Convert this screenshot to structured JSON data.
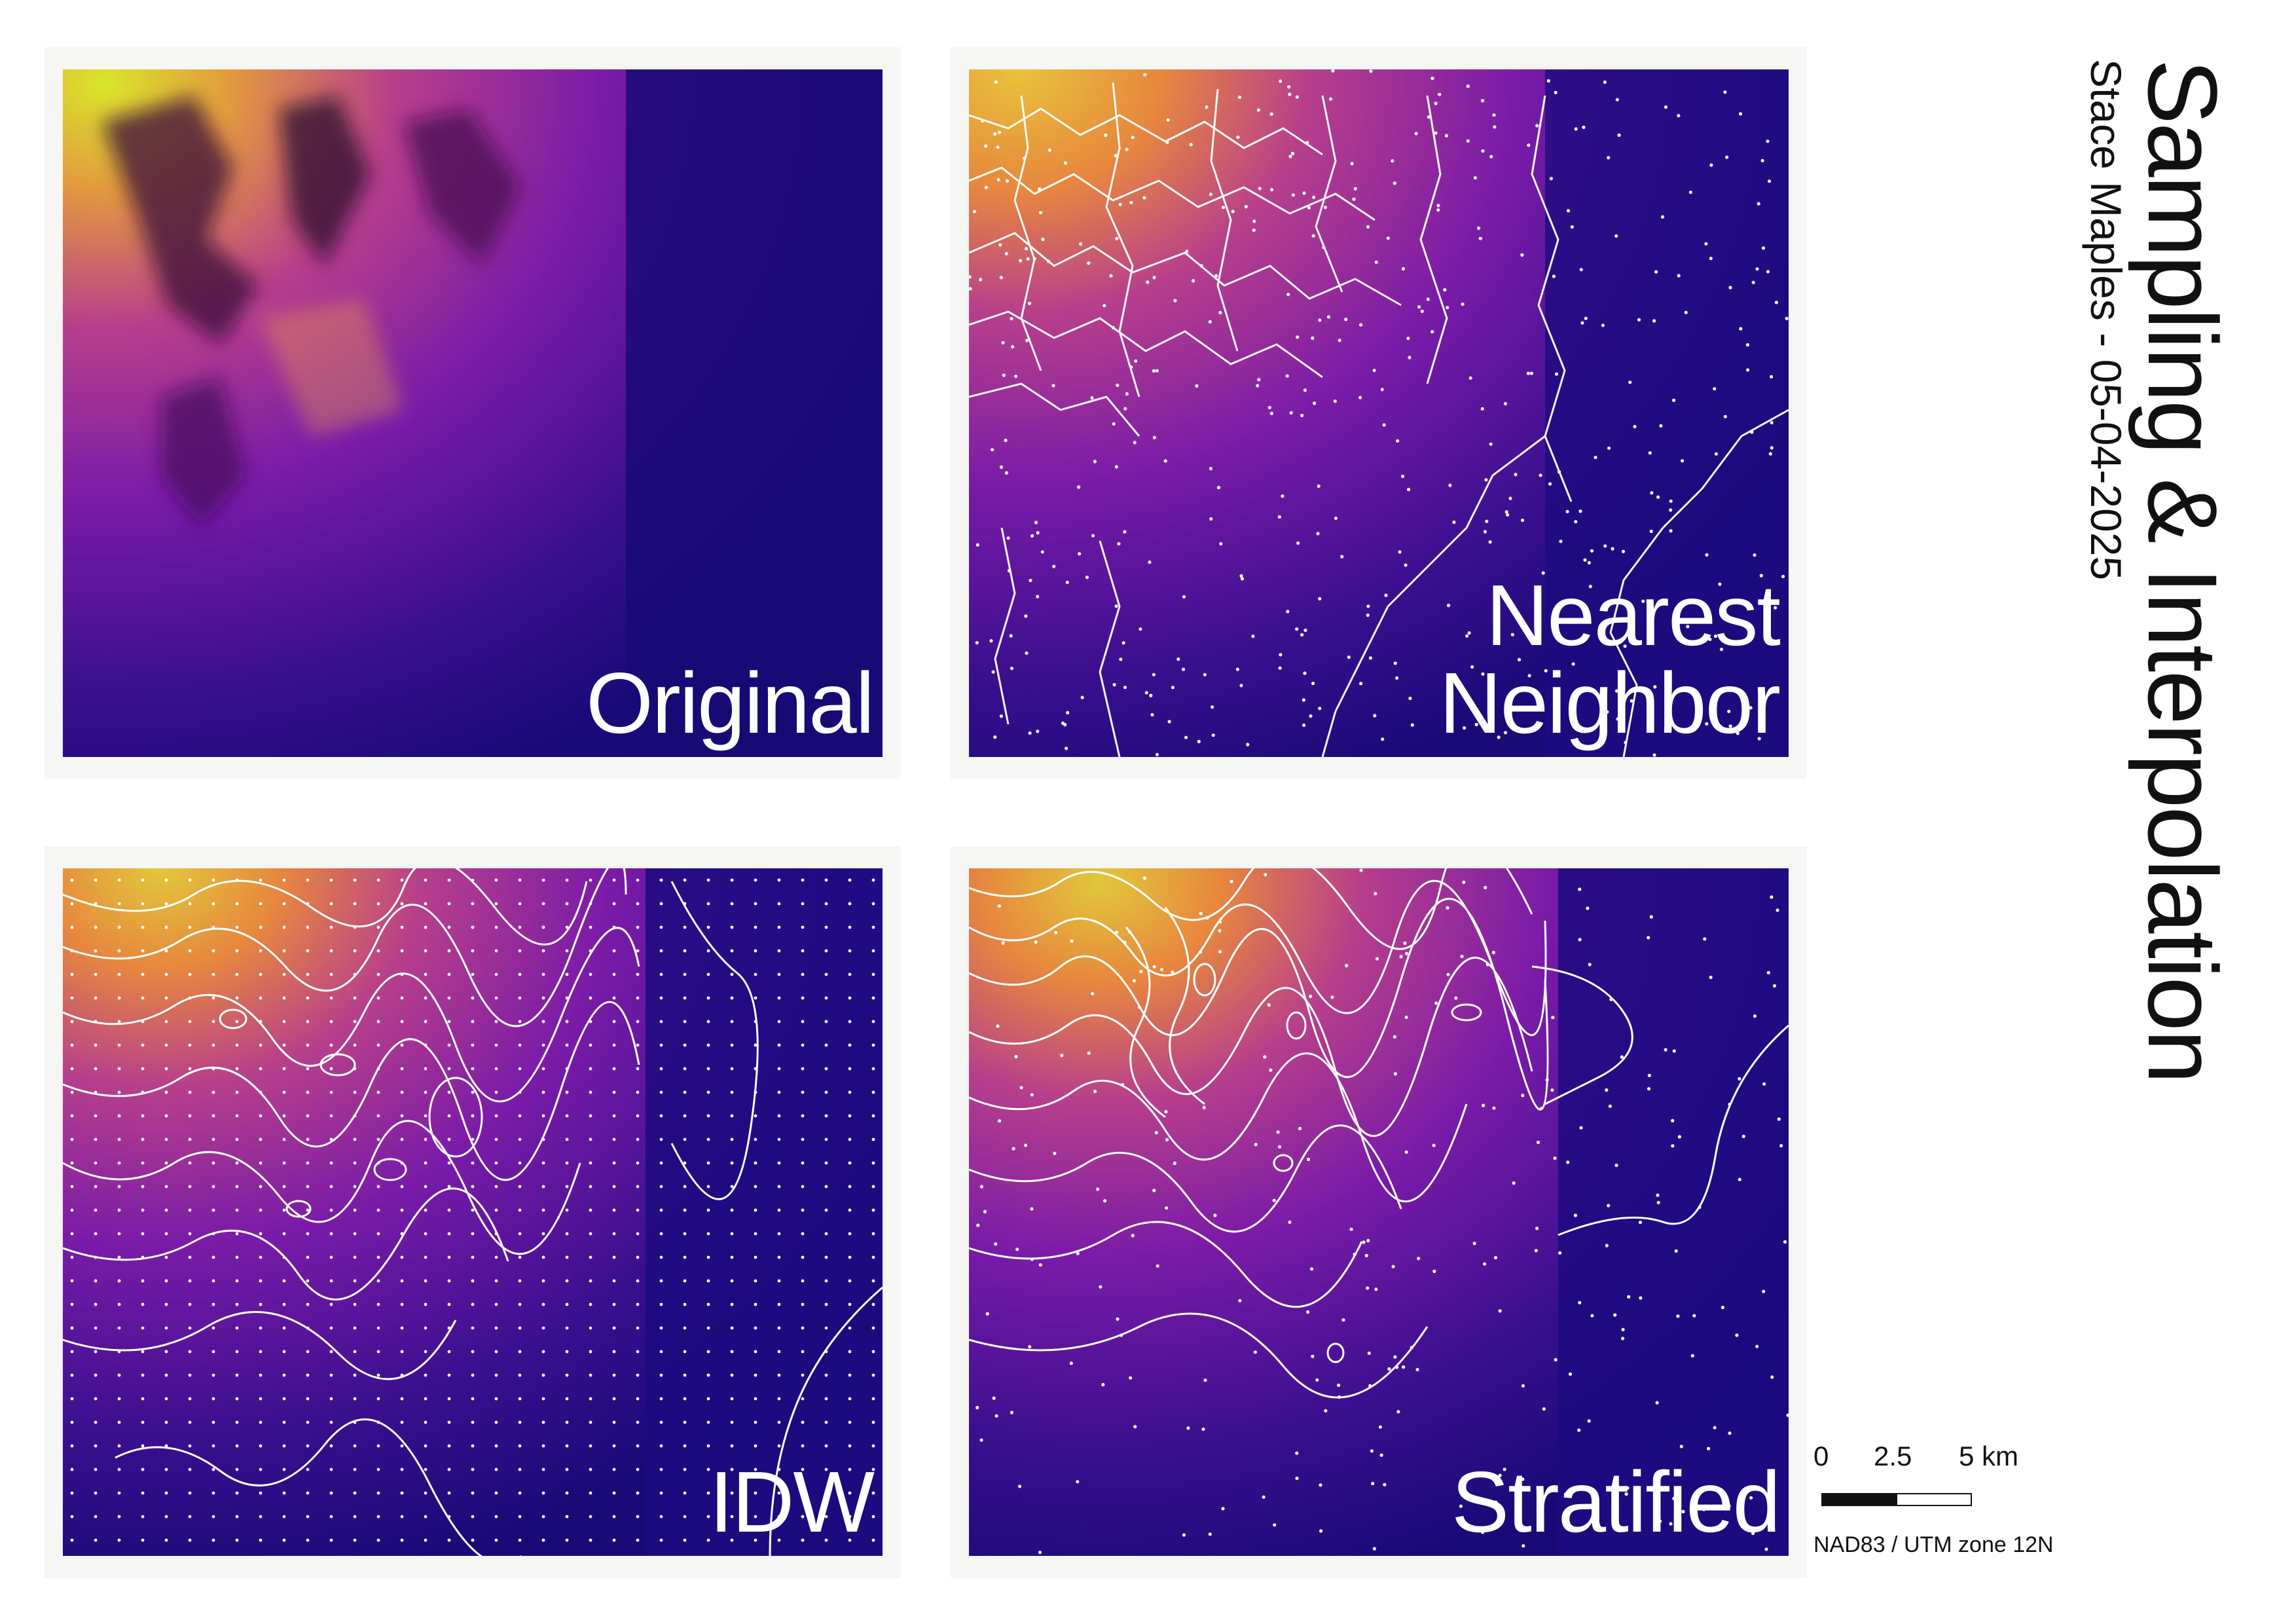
{
  "title": "Sampling & Interpolation",
  "author_date": "Stace Maples - 05-04-2025",
  "panels": [
    {
      "id": "original",
      "label": "Original"
    },
    {
      "id": "nearest",
      "label": "Nearest\nNeighbor"
    },
    {
      "id": "idw",
      "label": "IDW"
    },
    {
      "id": "stratified",
      "label": "Stratified"
    }
  ],
  "scalebar": {
    "ticks": [
      "0",
      "2.5",
      "5 km"
    ],
    "crs": "NAD83 / UTM zone 12N"
  },
  "colors": {
    "low": "#1a0a78",
    "mid": "#8a1aa8",
    "high": "#e7873e",
    "peak": "#d8e62a",
    "contour": "#ffffff"
  }
}
